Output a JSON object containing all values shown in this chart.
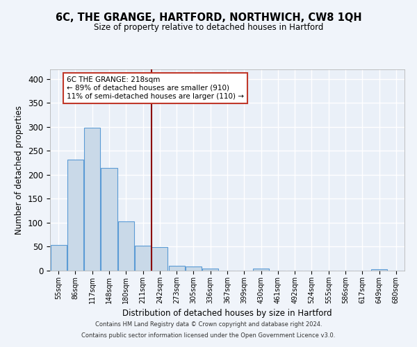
{
  "title": "6C, THE GRANGE, HARTFORD, NORTHWICH, CW8 1QH",
  "subtitle": "Size of property relative to detached houses in Hartford",
  "xlabel": "Distribution of detached houses by size in Hartford",
  "ylabel": "Number of detached properties",
  "categories": [
    "55sqm",
    "86sqm",
    "117sqm",
    "148sqm",
    "180sqm",
    "211sqm",
    "242sqm",
    "273sqm",
    "305sqm",
    "336sqm",
    "367sqm",
    "399sqm",
    "430sqm",
    "461sqm",
    "492sqm",
    "524sqm",
    "555sqm",
    "586sqm",
    "617sqm",
    "649sqm",
    "680sqm"
  ],
  "values": [
    53,
    232,
    299,
    215,
    103,
    52,
    49,
    10,
    9,
    5,
    0,
    0,
    4,
    0,
    0,
    0,
    0,
    0,
    0,
    3,
    0
  ],
  "bar_color": "#c9d9e8",
  "bar_edge_color": "#5b9bd5",
  "vline_x": 5.5,
  "vline_color": "#8b0000",
  "annotation_title": "6C THE GRANGE: 218sqm",
  "annotation_line1": "← 89% of detached houses are smaller (910)",
  "annotation_line2": "11% of semi-detached houses are larger (110) →",
  "annotation_box_color": "#ffffff",
  "annotation_box_edge": "#c0392b",
  "ylim": [
    0,
    420
  ],
  "yticks": [
    0,
    50,
    100,
    150,
    200,
    250,
    300,
    350,
    400
  ],
  "bg_color": "#eaf0f8",
  "grid_color": "#ffffff",
  "fig_bg_color": "#f0f4fa",
  "footer1": "Contains HM Land Registry data © Crown copyright and database right 2024.",
  "footer2": "Contains public sector information licensed under the Open Government Licence v3.0."
}
